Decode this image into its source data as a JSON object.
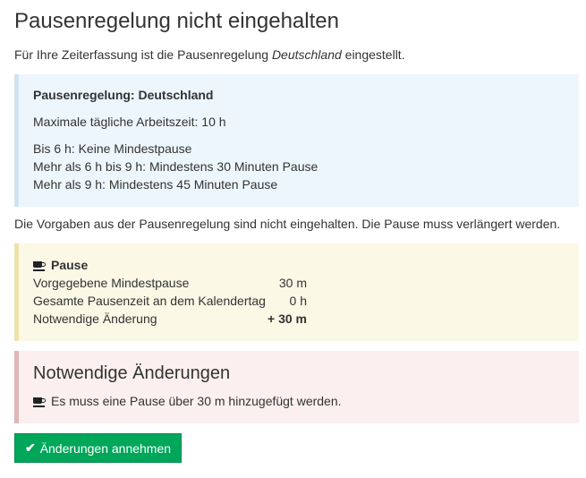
{
  "title": "Pausenregelung nicht eingehalten",
  "intro": {
    "before": "Für Ihre Zeiterfassung ist die Pausenregelung ",
    "region": "Deutschland",
    "after": " eingestellt."
  },
  "rule_box": {
    "heading": "Pausenregelung: Deutschland",
    "max_time": "Maximale tägliche Arbeitszeit: 10 h",
    "rules": [
      "Bis 6 h: Keine Mindestpause",
      "Mehr als 6 h bis 9 h: Mindestens 30 Minuten Pause",
      "Mehr als 9 h: Mindestens 45 Minuten Pause"
    ]
  },
  "violation_note": "Die Vorgaben aus der Pausenregelung sind nicht eingehalten. Die Pause muss verlängert werden.",
  "pause_box": {
    "heading": "Pause",
    "rows": [
      {
        "label": "Vorgegebene Mindestpause",
        "value": "30 m"
      },
      {
        "label": "Gesamte Pausenzeit an dem Kalendertag",
        "value": "0 h"
      },
      {
        "label": "Notwendige Änderung",
        "value": "+ 30 m"
      }
    ]
  },
  "changes_box": {
    "heading": "Notwendige Änderungen",
    "item": "Es muss eine Pause über 30 m hinzugefügt werden."
  },
  "accept_button": {
    "label": "Änderungen annehmen",
    "icon": "check-icon"
  },
  "colors": {
    "button": "#00a65a",
    "info": "#eef6fd",
    "warning": "#fcf8e6",
    "danger": "#fbefef"
  }
}
